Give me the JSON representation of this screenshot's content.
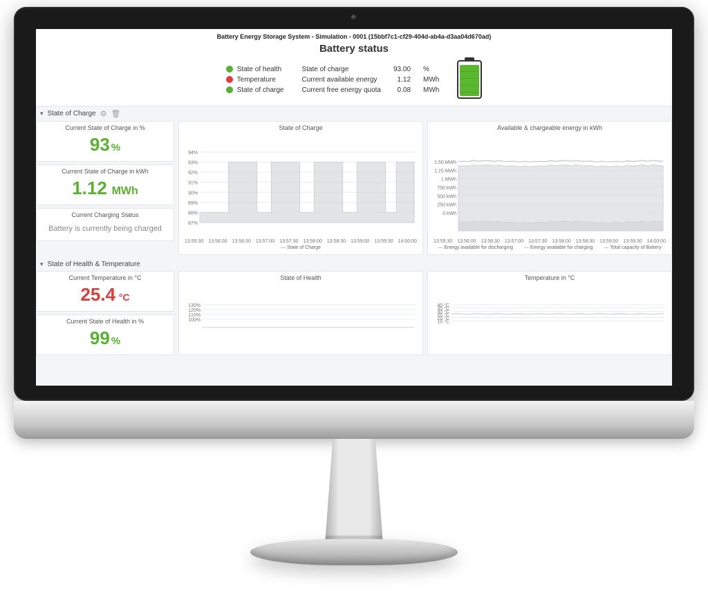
{
  "header": {
    "system_line": "Battery Energy Storage System - Simulation - 0001  (15bbf7c1-cf29-404d-ab4a-d3aa04d670ad)",
    "title": "Battery status",
    "status_indicators": [
      {
        "label": "State of health",
        "color": "#59b22f"
      },
      {
        "label": "Temperature",
        "color": "#e63b3b"
      },
      {
        "label": "State of charge",
        "color": "#59b22f"
      }
    ],
    "metrics": [
      {
        "label": "State of charge",
        "value": "93.00",
        "unit": "%"
      },
      {
        "label": "Current available energy",
        "value": "1.12",
        "unit": "MWh"
      },
      {
        "label": "Current free energy quota",
        "value": "0.08",
        "unit": "MWh"
      }
    ],
    "battery_icon": {
      "fill_pct": 93,
      "fill_color": "#5ab82e",
      "border_color": "#333333"
    }
  },
  "section_soc": {
    "title": "State of Charge",
    "stat_pct": {
      "title": "Current State of Charge in %",
      "value": "93",
      "unit": "%",
      "color": "#59b22f",
      "fontsize": 26
    },
    "stat_kwh": {
      "title": "Current State of Charge in kWh",
      "value": "1.12",
      "unit": "MWh",
      "color": "#59b22f",
      "fontsize": 26
    },
    "stat_chg": {
      "title": "Current Charging Status",
      "message": "Battery is currently being charged",
      "color": "#8a8f94"
    },
    "soc_chart": {
      "type": "step-line",
      "title": "State of Charge",
      "xlim": [
        "13:55:30",
        "14:00:30"
      ],
      "xticks": [
        "13:55:30",
        "13:56:00",
        "13:56:30",
        "13:57:00",
        "13:57:30",
        "13:58:00",
        "13:58:30",
        "13:59:00",
        "13:59:30",
        "14:00:00"
      ],
      "ylim": [
        87,
        94
      ],
      "yticks": [
        87,
        88,
        89,
        90,
        91,
        92,
        93,
        94
      ],
      "grid_color": "#e9ebee",
      "background_color": "#ffffff",
      "title_fontsize": 10,
      "tick_fontsize": 7,
      "series": [
        {
          "name": "State of Charge",
          "color": "#d0d2d6",
          "line_width": 1,
          "fill_opacity": 0.6,
          "points": [
            [
              "13:55:30",
              88
            ],
            [
              "13:56:10",
              88
            ],
            [
              "13:56:10",
              93
            ],
            [
              "13:56:50",
              93
            ],
            [
              "13:56:50",
              88
            ],
            [
              "13:57:10",
              88
            ],
            [
              "13:57:10",
              93
            ],
            [
              "13:57:50",
              93
            ],
            [
              "13:57:50",
              88
            ],
            [
              "13:58:10",
              88
            ],
            [
              "13:58:10",
              93
            ],
            [
              "13:58:50",
              93
            ],
            [
              "13:58:50",
              88
            ],
            [
              "13:59:10",
              88
            ],
            [
              "13:59:10",
              93
            ],
            [
              "13:59:50",
              93
            ],
            [
              "13:59:50",
              88
            ],
            [
              "14:00:05",
              88
            ],
            [
              "14:00:05",
              93
            ],
            [
              "14:00:30",
              93
            ]
          ]
        }
      ],
      "legend": [
        "State of Charge"
      ]
    },
    "energy_chart": {
      "type": "area",
      "title": "Available & chargeable energy in kWh",
      "xlim": [
        "13:55:30",
        "14:00:30"
      ],
      "xticks": [
        "13:55:30",
        "13:56:00",
        "13:56:30",
        "13:57:00",
        "13:57:30",
        "13:58:00",
        "13:58:30",
        "13:59:00",
        "13:59:30",
        "14:00:00"
      ],
      "ylim_label_suffix": " kWh",
      "ylim": [
        0,
        1.5
      ],
      "yticks": [
        0,
        0.25,
        0.5,
        0.75,
        1.0,
        1.25,
        1.5
      ],
      "ytick_labels": [
        "0 kWh",
        "250 kWh",
        "500 kWh",
        "750 kWh",
        "1 MWh",
        "1.25 MWh",
        "1.50 MWh"
      ],
      "grid_color": "#e9ebee",
      "background_color": "#ffffff",
      "series": [
        {
          "name": "Energy available for discharging",
          "color": "#cfd2d7",
          "fill_opacity": 0.55,
          "points": [
            [
              "13:55:30",
              0.15
            ],
            [
              "14:00:30",
              0.15
            ]
          ],
          "jitter": 0.02
        },
        {
          "name": "Energy available for charging",
          "color": "#cfd2d7",
          "fill_opacity": 0.55,
          "points": [
            [
              "13:55:30",
              1.12
            ],
            [
              "14:00:30",
              1.12
            ]
          ],
          "jitter": 0.02
        },
        {
          "name": "Total capacity of Battery",
          "color": "#bfc2c7",
          "fill_opacity": 0.0,
          "points": [
            [
              "13:55:30",
              1.2
            ],
            [
              "14:00:30",
              1.2
            ]
          ],
          "jitter": 0.015
        }
      ],
      "legend": [
        "Energy available for discharging",
        "Energy available for charging",
        "Total capacity of Battery"
      ]
    }
  },
  "section_health": {
    "title": "State of Health & Temperature",
    "stat_temp": {
      "title": "Current Temperature in °C",
      "value": "25.4",
      "unit": "°C",
      "color": "#e23b3b",
      "fontsize": 26
    },
    "stat_soh": {
      "title": "Current State of Health in %",
      "value": "99",
      "unit": "%",
      "color": "#59b22f",
      "fontsize": 26
    },
    "soh_chart": {
      "type": "line",
      "title": "State of Health",
      "ylim": [
        90,
        130
      ],
      "yticks": [
        100,
        110,
        120,
        130
      ],
      "grid_color": "#e9ebee",
      "series": [
        {
          "name": "SoH",
          "color": "#cfd2d7",
          "points_y": 99,
          "line_width": 1
        }
      ]
    },
    "temp_chart": {
      "type": "line",
      "title": "Temperature in °C",
      "ylim": [
        10,
        40
      ],
      "yticks": [
        15,
        20,
        25,
        30,
        35,
        40
      ],
      "ytick_suffix": " °C",
      "grid_color": "#e9ebee",
      "series": [
        {
          "name": "Temp",
          "color": "#cfd2d7",
          "points_y": 25.4,
          "jitter": 0.6,
          "line_width": 1
        }
      ]
    }
  },
  "palette": {
    "green": "#59b22f",
    "red": "#e23b3b",
    "panel_border": "#e3e5e8",
    "bg": "#f4f5f6",
    "text": "#333333",
    "muted": "#8a8f94",
    "series_gray": "#cfd2d7"
  }
}
